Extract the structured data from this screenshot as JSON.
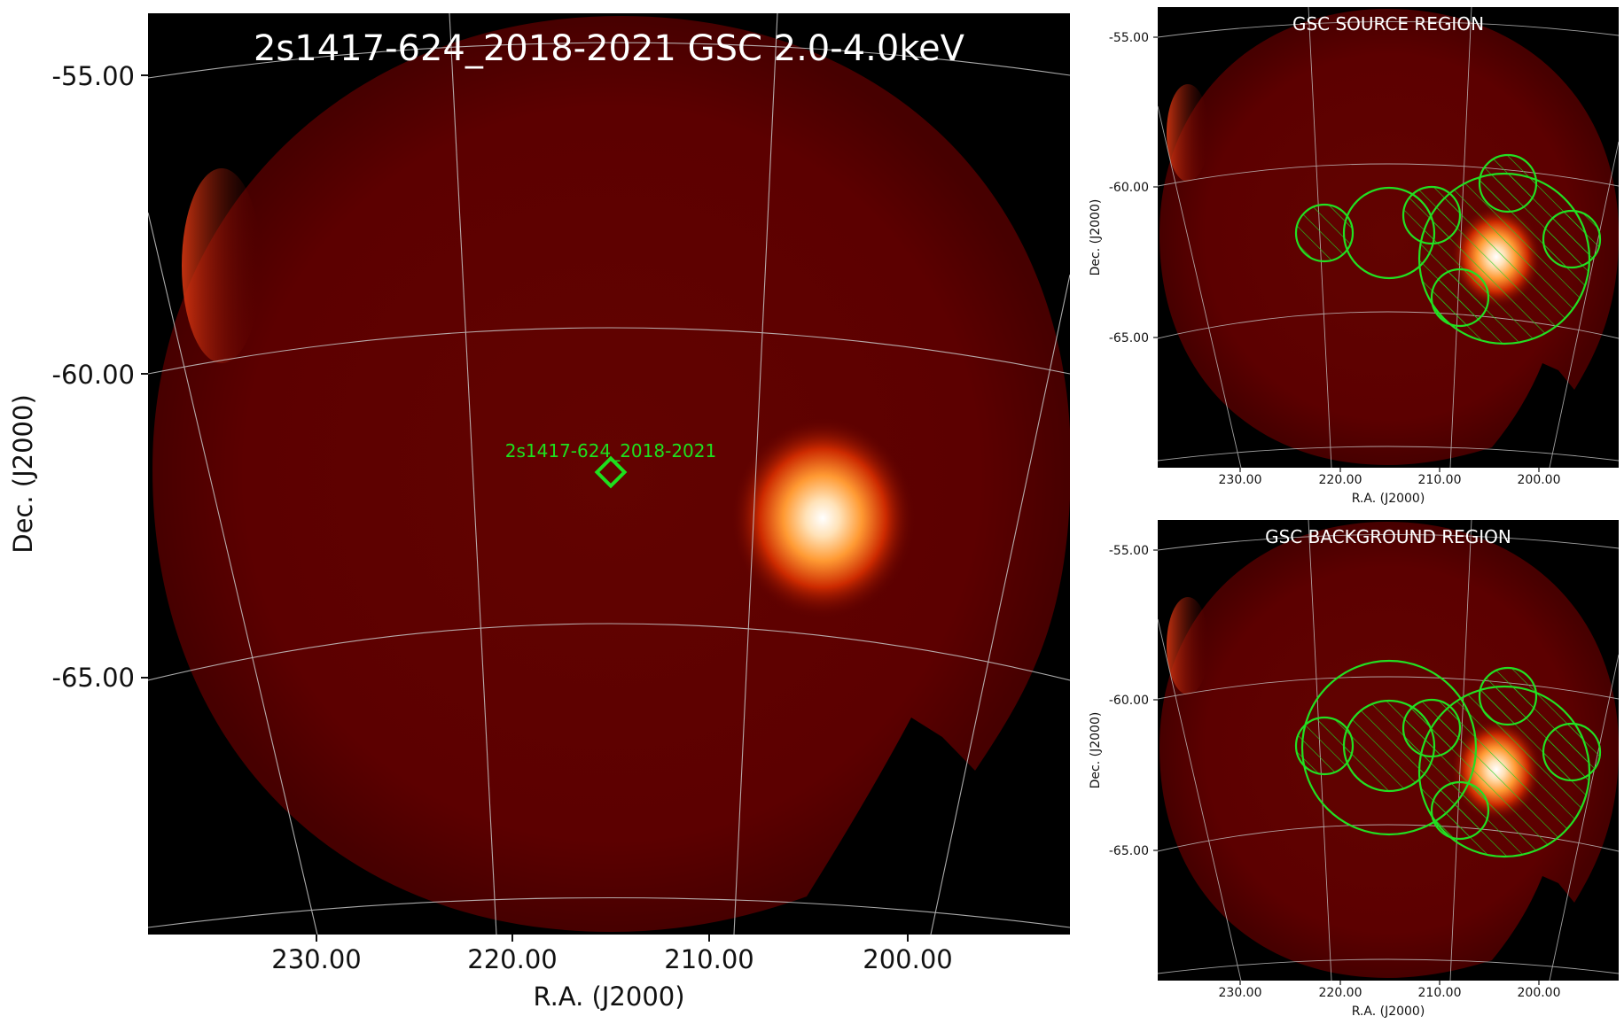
{
  "main_panel": {
    "title": "2s1417-624_2018-2021 GSC 2.0-4.0keV",
    "source_label": "2s1417-624_2018-2021",
    "xlabel": "R.A. (J2000)",
    "ylabel": "Dec. (J2000)",
    "xticks": [
      "230.00",
      "220.00",
      "210.00",
      "200.00"
    ],
    "yticks": [
      "-55.00",
      "-60.00",
      "-65.00"
    ]
  },
  "source_panel": {
    "title": "GSC SOURCE REGION",
    "xlabel": "R.A. (J2000)",
    "ylabel": "Dec. (J2000)",
    "xticks": [
      "230.00",
      "220.00",
      "210.00",
      "200.00"
    ],
    "yticks": [
      "-55.00",
      "-60.00",
      "-65.00"
    ]
  },
  "background_panel": {
    "title": "GSC BACKGROUND REGION",
    "xlabel": "R.A. (J2000)",
    "ylabel": "Dec. (J2000)",
    "xticks": [
      "230.00",
      "220.00",
      "210.00",
      "200.00"
    ],
    "yticks": [
      "-55.00",
      "-60.00",
      "-65.00"
    ]
  },
  "colors": {
    "sky": "#5a0000",
    "bright_source": "#ffffff",
    "region": "#22e022",
    "grid": "#c8c8c8",
    "title_text": "#ffffff"
  }
}
